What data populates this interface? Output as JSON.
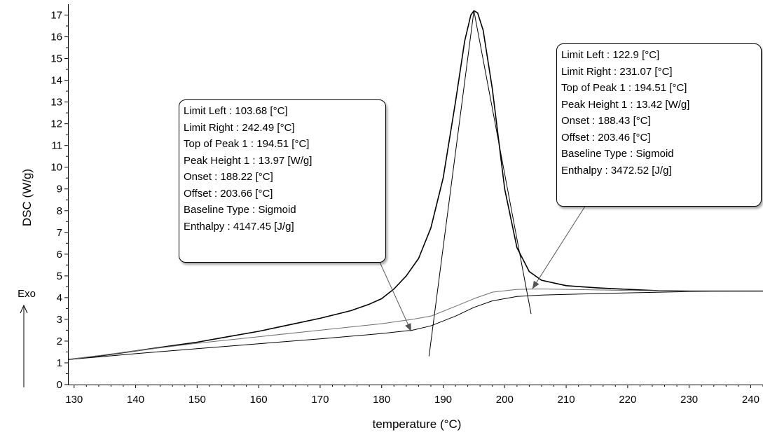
{
  "chart_data": {
    "type": "line",
    "xlabel": "temperature (°C)",
    "ylabel": "DSC (W/g)",
    "xlim": [
      129,
      242
    ],
    "ylim": [
      0,
      17.5
    ],
    "x_ticks": [
      130,
      140,
      150,
      160,
      170,
      180,
      190,
      200,
      210,
      220,
      230,
      240
    ],
    "y_ticks": [
      0,
      1,
      2,
      3,
      4,
      5,
      6,
      7,
      8,
      9,
      10,
      11,
      12,
      13,
      14,
      15,
      16,
      17
    ],
    "grid": false,
    "exo_label": "Exo",
    "series": [
      {
        "color": "#000000",
        "width": 1.6,
        "points": [
          [
            129,
            1.15
          ],
          [
            135,
            1.35
          ],
          [
            140,
            1.55
          ],
          [
            145,
            1.75
          ],
          [
            150,
            1.95
          ],
          [
            155,
            2.2
          ],
          [
            160,
            2.45
          ],
          [
            165,
            2.75
          ],
          [
            170,
            3.05
          ],
          [
            175,
            3.4
          ],
          [
            178,
            3.7
          ],
          [
            180,
            3.95
          ],
          [
            182,
            4.4
          ],
          [
            184,
            5.0
          ],
          [
            186,
            5.8
          ],
          [
            188,
            7.2
          ],
          [
            190,
            9.5
          ],
          [
            192,
            13.0
          ],
          [
            193.5,
            15.8
          ],
          [
            194.5,
            17.0
          ],
          [
            195,
            17.2
          ],
          [
            195.6,
            17.1
          ],
          [
            196.5,
            16.3
          ],
          [
            198,
            13.6
          ],
          [
            200,
            9.0
          ],
          [
            202,
            6.3
          ],
          [
            204,
            5.2
          ],
          [
            206,
            4.8
          ],
          [
            210,
            4.55
          ],
          [
            215,
            4.45
          ],
          [
            220,
            4.38
          ],
          [
            225,
            4.32
          ],
          [
            230,
            4.3
          ],
          [
            235,
            4.3
          ],
          [
            242,
            4.3
          ]
        ]
      },
      {
        "color": "#000000",
        "width": 1.0,
        "points": [
          [
            129,
            1.15
          ],
          [
            140,
            1.42
          ],
          [
            150,
            1.65
          ],
          [
            160,
            1.88
          ],
          [
            170,
            2.1
          ],
          [
            180,
            2.35
          ],
          [
            185,
            2.5
          ],
          [
            188,
            2.7
          ],
          [
            192,
            3.15
          ],
          [
            195,
            3.55
          ],
          [
            198,
            3.85
          ],
          [
            202,
            4.05
          ],
          [
            206,
            4.12
          ],
          [
            210,
            4.15
          ],
          [
            220,
            4.22
          ],
          [
            230,
            4.28
          ],
          [
            242,
            4.3
          ]
        ]
      },
      {
        "color": "#6e6e6e",
        "width": 1.0,
        "points": [
          [
            129,
            1.15
          ],
          [
            140,
            1.55
          ],
          [
            150,
            1.9
          ],
          [
            160,
            2.2
          ],
          [
            170,
            2.5
          ],
          [
            180,
            2.8
          ],
          [
            185,
            3.0
          ],
          [
            188,
            3.15
          ],
          [
            192,
            3.6
          ],
          [
            195,
            3.95
          ],
          [
            198,
            4.25
          ],
          [
            202,
            4.38
          ],
          [
            206,
            4.4
          ],
          [
            210,
            4.38
          ],
          [
            220,
            4.33
          ],
          [
            230,
            4.3
          ],
          [
            242,
            4.3
          ]
        ]
      },
      {
        "color": "#000000",
        "width": 1.0,
        "points": [
          [
            187.7,
            1.3
          ],
          [
            195,
            17.2
          ]
        ]
      },
      {
        "color": "#000000",
        "width": 1.0,
        "points": [
          [
            195,
            17.2
          ],
          [
            204.3,
            3.25
          ]
        ]
      }
    ],
    "annotations": [
      {
        "lines": [
          "Limit Left :  103.68 [°C]",
          "Limit Right :  242.49 [°C]",
          "Top of Peak 1 :  194.51 [°C]",
          "Peak Height 1 :  13.97 [W/g]",
          "Onset :  188.22 [°C]",
          "Offset :  203.66 [°C]",
          "Baseline Type :  Sigmoid",
          "Enthalpy :  4147.45 [J/g]"
        ],
        "arrow_to": [
          184.8,
          2.45
        ]
      },
      {
        "lines": [
          "Limit Left :  122.9 [°C]",
          "Limit Right :  231.07 [°C]",
          "Top of Peak 1 :  194.51 [°C]",
          "Peak Height 1 :  13.42 [W/g]",
          "Onset :  188.43 [°C]",
          "Offset :  203.46 [°C]",
          "Baseline Type :  Sigmoid",
          "Enthalpy :  3472.52 [J/g]"
        ],
        "arrow_to": [
          204.5,
          4.4
        ]
      }
    ]
  }
}
